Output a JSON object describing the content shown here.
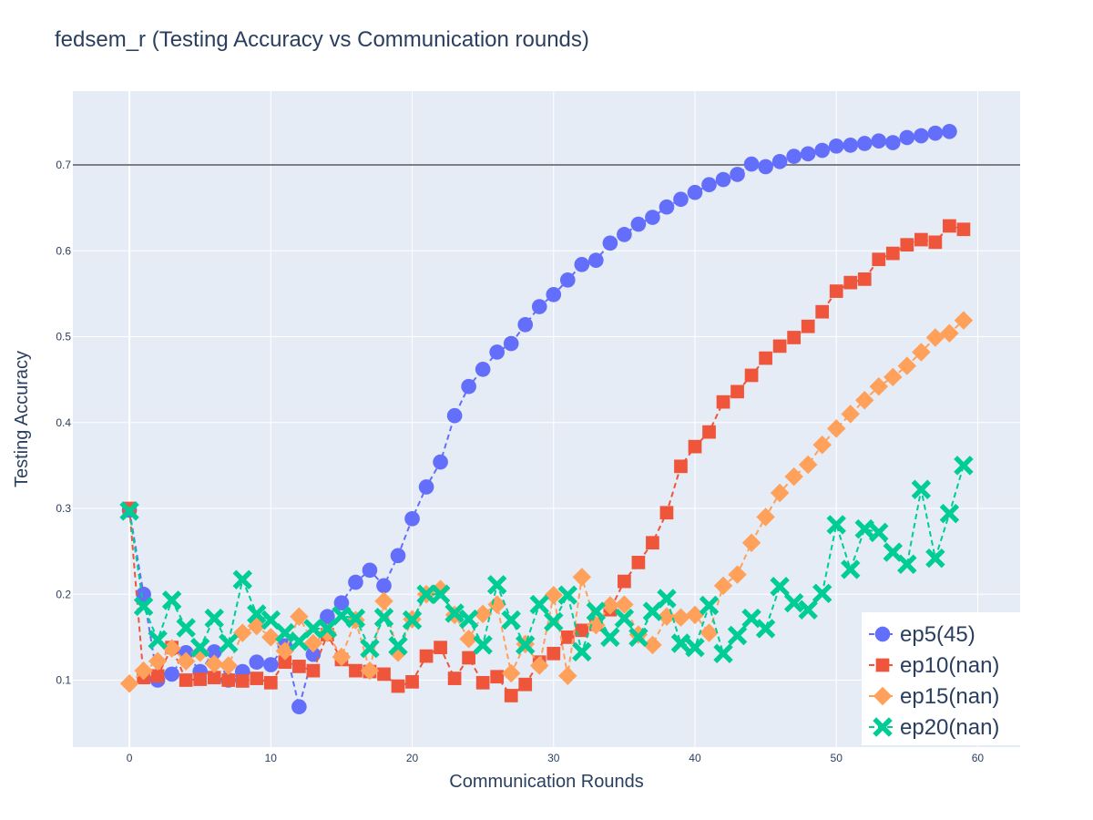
{
  "chart_data": {
    "type": "line",
    "title": "fedsem_r (Testing Accuracy vs Communication rounds)",
    "xlabel": "Communication Rounds",
    "ylabel": "Testing Accuracy",
    "xlim": [
      -4,
      63
    ],
    "ylim": [
      0.022,
      0.786
    ],
    "xticks": [
      0,
      10,
      20,
      30,
      40,
      50,
      60
    ],
    "yticks": [
      0.1,
      0.2,
      0.3,
      0.4,
      0.5,
      0.6,
      0.7
    ],
    "ytick_labels": [
      "0.1",
      "0.2",
      "0.3",
      "0.4",
      "0.5",
      "0.6",
      "0.7"
    ],
    "reference_line": {
      "y": 0.7,
      "color": "#7f7f89"
    },
    "grid": true,
    "legend_position": "bottom-right",
    "background": "#e5ecf6",
    "series": [
      {
        "name": "ep5(45)",
        "color": "#636efa",
        "marker": "circle",
        "values": [
          0.298,
          0.2,
          0.1,
          0.107,
          0.132,
          0.11,
          0.133,
          0.1,
          0.11,
          0.121,
          0.118,
          0.14,
          0.069,
          0.13,
          0.174,
          0.19,
          0.214,
          0.228,
          0.21,
          0.245,
          0.288,
          0.325,
          0.354,
          0.408,
          0.442,
          0.462,
          0.482,
          0.492,
          0.514,
          0.535,
          0.549,
          0.566,
          0.584,
          0.589,
          0.609,
          0.619,
          0.631,
          0.639,
          0.651,
          0.66,
          0.668,
          0.677,
          0.683,
          0.689,
          0.701,
          0.698,
          0.704,
          0.71,
          0.713,
          0.717,
          0.722,
          0.723,
          0.725,
          0.728,
          0.726,
          0.732,
          0.734,
          0.737,
          0.739
        ]
      },
      {
        "name": "ep10(nan)",
        "color": "#ef553b",
        "marker": "square",
        "values": [
          0.3,
          0.103,
          0.105,
          0.138,
          0.1,
          0.101,
          0.103,
          0.1,
          0.099,
          0.102,
          0.097,
          0.121,
          0.116,
          0.111,
          0.153,
          0.124,
          0.111,
          0.11,
          0.107,
          0.093,
          0.098,
          0.128,
          0.138,
          0.102,
          0.126,
          0.097,
          0.104,
          0.082,
          0.095,
          0.121,
          0.131,
          0.15,
          0.158,
          0.165,
          0.182,
          0.215,
          0.237,
          0.26,
          0.295,
          0.349,
          0.372,
          0.389,
          0.424,
          0.436,
          0.455,
          0.475,
          0.489,
          0.499,
          0.512,
          0.529,
          0.553,
          0.563,
          0.567,
          0.59,
          0.597,
          0.607,
          0.613,
          0.61,
          0.629,
          0.625
        ]
      },
      {
        "name": "ep15(nan)",
        "color": "#ffa15a",
        "marker": "diamond",
        "values": [
          0.096,
          0.111,
          0.122,
          0.137,
          0.122,
          0.132,
          0.119,
          0.117,
          0.155,
          0.163,
          0.15,
          0.134,
          0.174,
          0.143,
          0.155,
          0.127,
          0.17,
          0.111,
          0.192,
          0.132,
          0.171,
          0.2,
          0.206,
          0.176,
          0.148,
          0.177,
          0.188,
          0.108,
          0.142,
          0.117,
          0.199,
          0.105,
          0.22,
          0.164,
          0.187,
          0.188,
          0.153,
          0.141,
          0.174,
          0.173,
          0.176,
          0.155,
          0.21,
          0.223,
          0.26,
          0.29,
          0.318,
          0.337,
          0.351,
          0.374,
          0.393,
          0.41,
          0.426,
          0.442,
          0.453,
          0.466,
          0.482,
          0.499,
          0.504,
          0.519
        ]
      },
      {
        "name": "ep20(nan)",
        "color": "#00cc96",
        "marker": "x",
        "values": [
          0.297,
          0.186,
          0.147,
          0.193,
          0.161,
          0.138,
          0.172,
          0.143,
          0.217,
          0.177,
          0.17,
          0.155,
          0.145,
          0.16,
          0.16,
          0.175,
          0.172,
          0.137,
          0.173,
          0.14,
          0.17,
          0.2,
          0.2,
          0.178,
          0.171,
          0.141,
          0.211,
          0.17,
          0.141,
          0.188,
          0.168,
          0.199,
          0.133,
          0.18,
          0.15,
          0.172,
          0.15,
          0.18,
          0.195,
          0.143,
          0.138,
          0.187,
          0.131,
          0.152,
          0.172,
          0.16,
          0.209,
          0.19,
          0.182,
          0.201,
          0.281,
          0.229,
          0.276,
          0.272,
          0.249,
          0.235,
          0.322,
          0.242,
          0.294,
          0.35
        ]
      }
    ]
  }
}
